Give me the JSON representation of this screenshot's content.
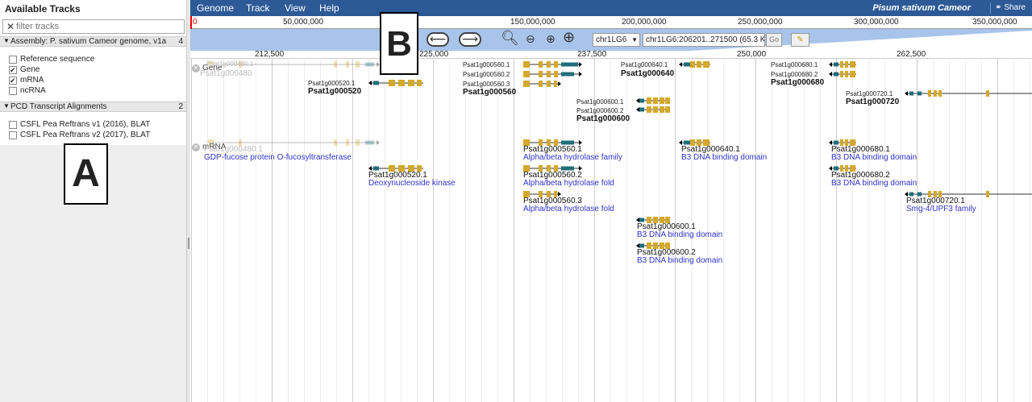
{
  "left_panel": {
    "title": "Available Tracks",
    "filter_placeholder": "filter tracks",
    "categories": [
      {
        "label": "Assembly: P. sativum Cameor genome, v1a",
        "count": "4",
        "tracks": [
          {
            "label": "Reference sequence",
            "checked": false
          },
          {
            "label": "Gene",
            "checked": true
          },
          {
            "label": "mRNA",
            "checked": true
          },
          {
            "label": "ncRNA",
            "checked": false
          }
        ]
      },
      {
        "label": "PCD Transcript Alignments",
        "count": "2",
        "tracks": [
          {
            "label": "CSFL Pea Reftrans v1 (2016), BLAT",
            "checked": false
          },
          {
            "label": "CSFL Pea Reftrans v2 (2017), BLAT",
            "checked": false
          }
        ]
      }
    ]
  },
  "callouts": {
    "a": "A",
    "b": "B"
  },
  "menu": {
    "items": [
      "Genome",
      "Track",
      "View",
      "Help"
    ],
    "species": "Pisum sativum Cameor",
    "share": "Share"
  },
  "overview": {
    "red_marker": "0",
    "ticks": [
      "50,000,000",
      "150,000,000",
      "200,000,000",
      "250,000,000",
      "300,000,000",
      "350,000,000"
    ]
  },
  "nav": {
    "ref_seq": "chr1LG6",
    "location": "chr1LG6:206201..271500 (65.3 Kb)",
    "go": "Go"
  },
  "ruler": {
    "ticks": [
      "212,500",
      "225,000",
      "237,500",
      "250,000",
      "262,500"
    ]
  },
  "tracks": {
    "gene": {
      "label": "Gene",
      "features": [
        {
          "id": "Psat1g000480",
          "subs": [
            "Psat1g000480.1"
          ]
        },
        {
          "id": "Psat1g000520",
          "subs": [
            "Psat1g000520.1"
          ]
        },
        {
          "id": "Psat1g000560",
          "subs": [
            "Psat1g000560.1",
            "Psat1g000560.2",
            "Psat1g000560.3"
          ]
        },
        {
          "id": "Psat1g000640",
          "subs": [
            "Psat1g000640.1"
          ]
        },
        {
          "id": "Psat1g000600",
          "subs": [
            "Psat1g000600.1",
            "Psat1g000600.2"
          ]
        },
        {
          "id": "Psat1g000680",
          "subs": [
            "Psat1g000680.1",
            "Psat1g000680.2"
          ]
        },
        {
          "id": "Psat1g000720",
          "subs": [
            "Psat1g000720.1"
          ]
        }
      ]
    },
    "mrna": {
      "label": "mRNA",
      "features": [
        {
          "id": "Psat1g000480.1",
          "desc": "GDP-fucose protein O-fucosyltransferase"
        },
        {
          "id": "Psat1g000520.1",
          "desc": "Deoxynucleoside kinase"
        },
        {
          "id": "Psat1g000560.1",
          "desc": "Alpha/beta hydrolase family"
        },
        {
          "id": "Psat1g000560.2",
          "desc": "Alpha/beta hydrolase fold"
        },
        {
          "id": "Psat1g000560.3",
          "desc": "Alpha/beta hydrolase fold"
        },
        {
          "id": "Psat1g000640.1",
          "desc": "B3 DNA binding domain"
        },
        {
          "id": "Psat1g000600.1",
          "desc": "B3 DNA binding domain"
        },
        {
          "id": "Psat1g000600.2",
          "desc": "B3 DNA binding domain"
        },
        {
          "id": "Psat1g000680.1",
          "desc": "B3 DNA binding domain"
        },
        {
          "id": "Psat1g000680.2",
          "desc": "B3 DNA binding domain"
        },
        {
          "id": "Psat1g000720.1",
          "desc": "Smg-4/UPF3 family"
        }
      ]
    }
  },
  "colors": {
    "menubar": "#2d5a96",
    "exon": "#d4a82a",
    "utr": "#1f6f7a",
    "intron": "#333333",
    "desc": "#3333cc"
  }
}
